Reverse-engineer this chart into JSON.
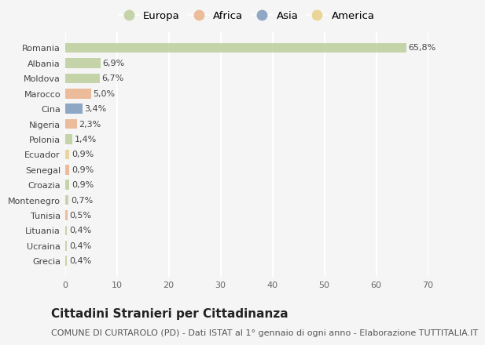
{
  "countries": [
    "Romania",
    "Albania",
    "Moldova",
    "Marocco",
    "Cina",
    "Nigeria",
    "Polonia",
    "Ecuador",
    "Senegal",
    "Croazia",
    "Montenegro",
    "Tunisia",
    "Lituania",
    "Ucraina",
    "Grecia"
  ],
  "values": [
    65.8,
    6.9,
    6.7,
    5.0,
    3.4,
    2.3,
    1.4,
    0.9,
    0.9,
    0.9,
    0.7,
    0.5,
    0.4,
    0.4,
    0.4
  ],
  "labels": [
    "65,8%",
    "6,9%",
    "6,7%",
    "5,0%",
    "3,4%",
    "2,3%",
    "1,4%",
    "0,9%",
    "0,9%",
    "0,9%",
    "0,7%",
    "0,5%",
    "0,4%",
    "0,4%",
    "0,4%"
  ],
  "continents": [
    "Europa",
    "Europa",
    "Europa",
    "Africa",
    "Asia",
    "Africa",
    "Europa",
    "America",
    "Africa",
    "Europa",
    "Europa",
    "Africa",
    "Europa",
    "Europa",
    "Europa"
  ],
  "continent_colors": {
    "Europa": "#b5c98e",
    "Africa": "#e8a87c",
    "Asia": "#6b8db5",
    "America": "#e8c97a"
  },
  "legend_order": [
    "Europa",
    "Africa",
    "Asia",
    "America"
  ],
  "background_color": "#f5f5f5",
  "grid_color": "#ffffff",
  "xlim": [
    0,
    70
  ],
  "xticks": [
    0,
    10,
    20,
    30,
    40,
    50,
    60,
    70
  ],
  "title": "Cittadini Stranieri per Cittadinanza",
  "subtitle": "COMUNE DI CURTAROLO (PD) - Dati ISTAT al 1° gennaio di ogni anno - Elaborazione TUTTITALIA.IT",
  "title_fontsize": 11,
  "subtitle_fontsize": 8,
  "label_fontsize": 8,
  "tick_fontsize": 8,
  "legend_fontsize": 9.5
}
